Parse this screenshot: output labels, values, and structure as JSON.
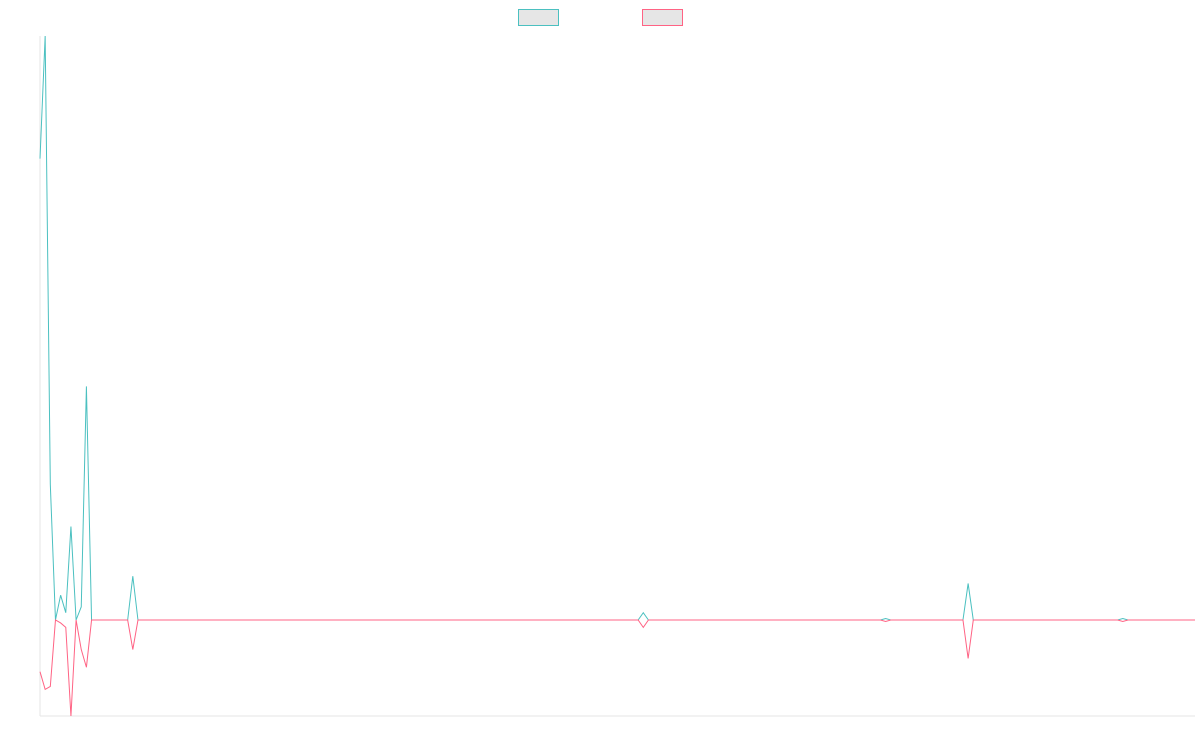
{
  "colors": {
    "series_a": "#4bc0c0",
    "series_b": "#ff6384",
    "legend_fill": "#e6e6e6",
    "axis": "#e5e5e5"
  },
  "legend": {
    "placement": "top-center",
    "entries": [
      {
        "label": "",
        "color": "#4bc0c0"
      },
      {
        "label": "",
        "color": "#ff6384"
      }
    ]
  },
  "chart_data": {
    "type": "line",
    "xlim": [
      0,
      224
    ],
    "ylim": [
      -0.65,
      4.0
    ],
    "grid": false,
    "ticks_visible": false,
    "series": [
      {
        "color": "#4bc0c0",
        "points": [
          [
            0,
            3.16
          ],
          [
            1,
            4.0
          ],
          [
            2,
            0.93
          ],
          [
            3,
            0.0
          ],
          [
            4,
            0.17
          ],
          [
            5,
            0.05
          ],
          [
            6,
            0.64
          ],
          [
            7,
            0.0
          ],
          [
            8,
            0.09
          ],
          [
            9,
            1.6
          ],
          [
            10,
            0.0
          ],
          [
            17,
            0.0
          ],
          [
            18,
            0.3
          ],
          [
            19,
            0.0
          ],
          [
            116,
            0.0
          ],
          [
            117,
            0.05
          ],
          [
            118,
            0.0
          ],
          [
            163,
            0.0
          ],
          [
            164,
            0.01
          ],
          [
            165,
            0.0
          ],
          [
            179,
            0.0
          ],
          [
            180,
            0.25
          ],
          [
            181,
            0.0
          ],
          [
            209,
            0.0
          ],
          [
            210,
            0.01
          ],
          [
            211,
            0.0
          ],
          [
            224,
            0.0
          ]
        ]
      },
      {
        "color": "#ff6384",
        "points": [
          [
            0,
            -0.35
          ],
          [
            1,
            -0.47
          ],
          [
            2,
            -0.45
          ],
          [
            3,
            0.0
          ],
          [
            4,
            -0.02
          ],
          [
            5,
            -0.05
          ],
          [
            6,
            -0.65
          ],
          [
            7,
            0.0
          ],
          [
            8,
            -0.2
          ],
          [
            9,
            -0.32
          ],
          [
            10,
            0.0
          ],
          [
            17,
            0.0
          ],
          [
            18,
            -0.2
          ],
          [
            19,
            0.0
          ],
          [
            116,
            0.0
          ],
          [
            117,
            -0.05
          ],
          [
            118,
            0.0
          ],
          [
            163,
            0.0
          ],
          [
            164,
            -0.01
          ],
          [
            165,
            0.0
          ],
          [
            179,
            0.0
          ],
          [
            180,
            -0.26
          ],
          [
            181,
            0.0
          ],
          [
            209,
            0.0
          ],
          [
            210,
            -0.01
          ],
          [
            211,
            0.0
          ],
          [
            224,
            0.0
          ]
        ]
      }
    ]
  }
}
